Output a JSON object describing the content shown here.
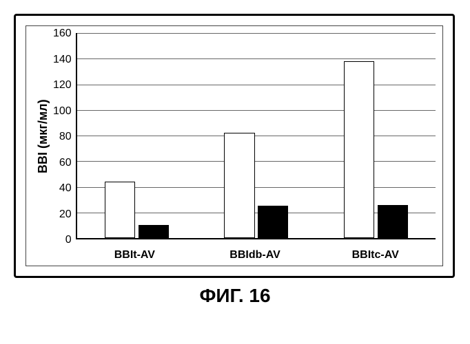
{
  "chart": {
    "type": "bar-grouped",
    "ylabel": "BBI (мкг/мл)",
    "ylim": [
      0,
      160
    ],
    "ytick_step": 20,
    "yticks": [
      0,
      20,
      40,
      60,
      80,
      100,
      120,
      140,
      160
    ],
    "grid_color": "#666666",
    "background_color": "#ffffff",
    "categories": [
      "BBIt-AV",
      "BBIdb-AV",
      "BBItc-AV"
    ],
    "series": [
      {
        "name": "series-a",
        "fill": "#ffffff",
        "border": "#000000",
        "values": [
          44,
          82,
          138
        ]
      },
      {
        "name": "series-b",
        "fill": "#000000",
        "border": "#000000",
        "values": [
          10,
          25,
          26
        ]
      }
    ],
    "label_fontsize": 16,
    "ylabel_fontsize": 18,
    "bar_group_gap_pct": 6,
    "bar_inner_gap_pct": 4
  },
  "caption": "ФИГ. 16"
}
